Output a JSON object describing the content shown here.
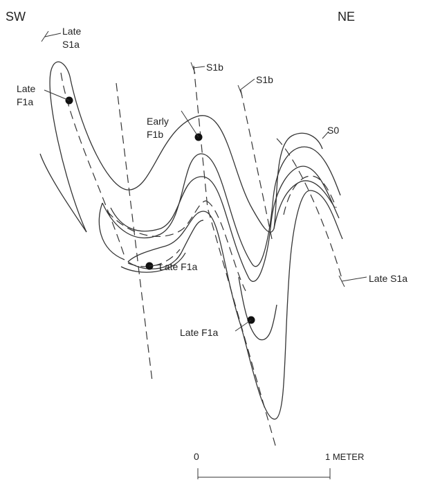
{
  "orientation": {
    "left": "SW",
    "right": "NE"
  },
  "labels": [
    {
      "lines": [
        "Late",
        "S1a"
      ]
    },
    {
      "lines": [
        "Late",
        "F1a"
      ]
    },
    {
      "lines": [
        "S1b"
      ]
    },
    {
      "lines": [
        "S1b"
      ]
    },
    {
      "lines": [
        "Early",
        "F1b"
      ]
    },
    {
      "lines": [
        "S0"
      ]
    },
    {
      "lines": [
        "Late F1a"
      ]
    },
    {
      "lines": [
        "Late F1a"
      ]
    },
    {
      "lines": [
        "Late S1a"
      ]
    }
  ],
  "scale": {
    "start": "0",
    "end": "1 METER"
  }
}
